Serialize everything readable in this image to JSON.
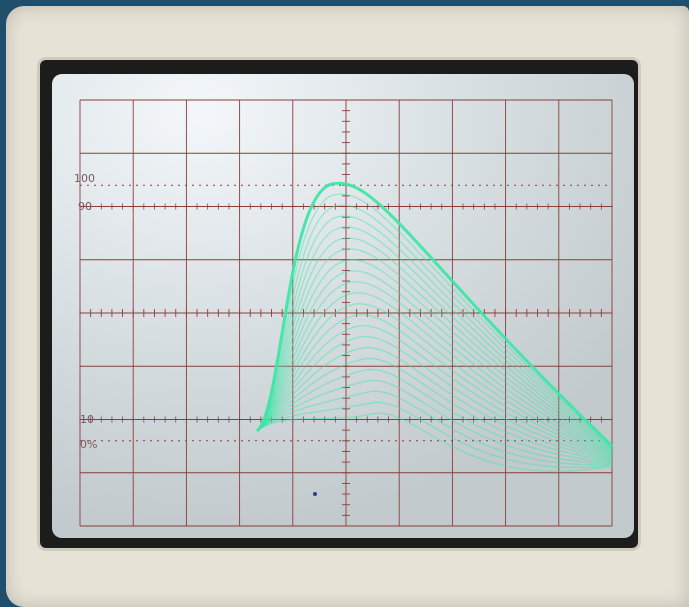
{
  "screen": {
    "label_100": "100",
    "label_90": "90",
    "label_10": "10",
    "label_0": "0%"
  },
  "colors": {
    "trace": "#3fe6a6",
    "grid": "#8a3e3a",
    "phosphor": "#d7dfe2",
    "bezel": "#e6e2d6"
  }
}
